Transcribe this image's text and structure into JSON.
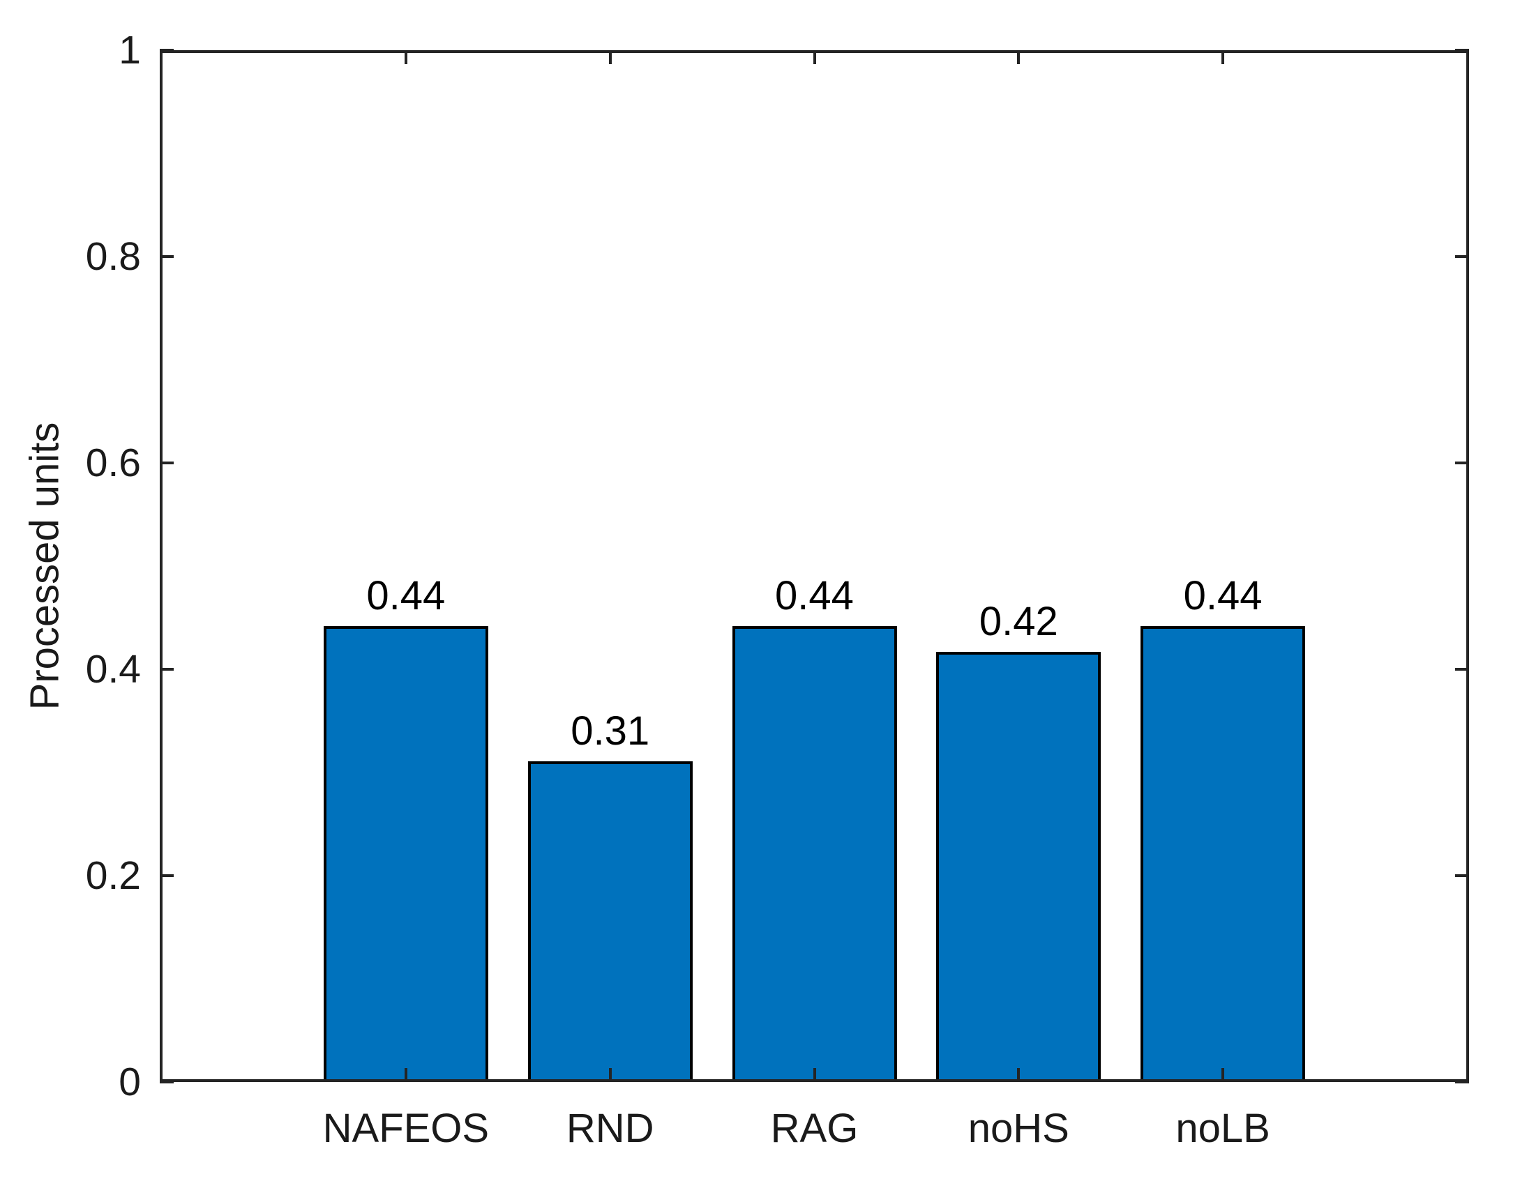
{
  "chart_data": {
    "type": "bar",
    "title": "",
    "categories": [
      "NAFEOS",
      "RND",
      "RAG",
      "noHS",
      "noLB"
    ],
    "values": [
      0.442,
      0.311,
      0.442,
      0.417,
      0.442
    ],
    "value_labels": [
      "0.44",
      "0.31",
      "0.44",
      "0.42",
      "0.44"
    ],
    "xlabel": "",
    "ylabel": "Processed units",
    "ylim": [
      0,
      1
    ],
    "yticks": [
      0,
      0.2,
      0.4,
      0.6,
      0.8,
      1
    ],
    "ytick_labels": [
      "0",
      "0.2",
      "0.4",
      "0.6",
      "0.8",
      "1"
    ],
    "grid": "off",
    "legend": "none",
    "bar_color": "#0072BD",
    "bar_edge_color": "#000000",
    "axis_color": "#242424",
    "label_color": "#000000",
    "background_color": "#ffffff"
  }
}
